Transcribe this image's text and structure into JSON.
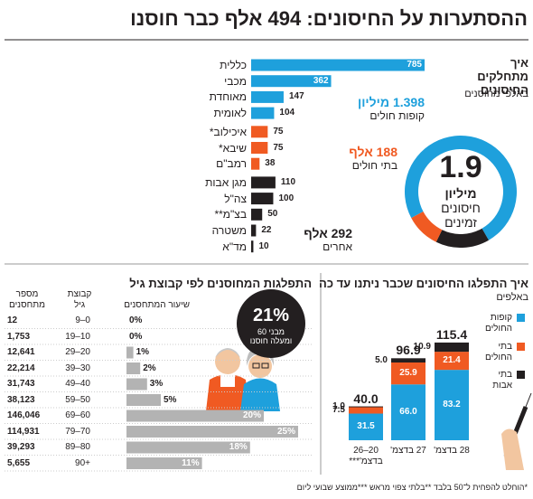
{
  "title": "ההסתערות על החיסונים: 494 אלף כבר חוסנו",
  "footnote": "*הוחלט להפחית ל־50 בלבד **בלתי צפוי מראש ***ממוצע שבועי ליום",
  "chart_data": [
    {
      "type": "hbar",
      "title": "איך מתחלקים החיסונים",
      "subtitle": "באלפי מחוסנים",
      "categories": [
        "כללית",
        "מכבי",
        "מאוחדת",
        "לאומית",
        "איכילוב*",
        "שיבא*",
        "רמב\"ם",
        "מגן אבות",
        "צה\"ל",
        "בצ\"מ**",
        "משטרה",
        "מד\"א"
      ],
      "values": [
        785,
        362,
        147,
        104,
        75,
        75,
        38,
        110,
        100,
        50,
        22,
        10
      ],
      "colors": [
        "#1ea0dc",
        "#1ea0dc",
        "#1ea0dc",
        "#1ea0dc",
        "#f05a22",
        "#f05a22",
        "#f05a22",
        "#231f20",
        "#231f20",
        "#231f20",
        "#231f20",
        "#231f20"
      ]
    },
    {
      "type": "donut",
      "categories": [
        "קופות חולים",
        "בתי חולים",
        "אחרים"
      ],
      "values": [
        1398,
        188,
        292
      ],
      "value_labels": [
        "1.398 מיליון",
        "188 אלף",
        "292 אלף"
      ],
      "colors": [
        "#1ea0dc",
        "#f05a22",
        "#231f20"
      ],
      "total": 1.9,
      "total_unit": "מיליון",
      "center_label": "חיסונים זמינים"
    },
    {
      "type": "stacked_bar",
      "title": "איך התפלגו החיסונים שכבר ניתנו עד כה",
      "subtitle": "באלפים",
      "categories": [
        "20–26 בדצמ'***",
        "27 בדצמ'",
        "28 בדצמ'"
      ],
      "series": [
        {
          "name": "קופות החולים",
          "color": "#1ea0dc",
          "values": [
            31.5,
            66,
            83.2
          ],
          "value_labels": [
            "31.5",
            "66.0",
            "83.2"
          ]
        },
        {
          "name": "בתי החולים",
          "color": "#f05a22",
          "values": [
            7.5,
            25.9,
            21.4
          ]
        },
        {
          "name": "בתי אבות",
          "color": "#231f20",
          "values": [
            1,
            5,
            10.9
          ],
          "value_labels": [
            "1.0",
            "5.0",
            "10.9"
          ]
        }
      ],
      "totals": [
        40,
        96.9,
        115.4
      ],
      "total_labels": [
        "40.0",
        "96.9",
        "115.4"
      ]
    },
    {
      "type": "age_bar",
      "title": "התפלגות המחוסנים לפי קבוצת גיל",
      "column_headers": [
        "מספר מתחסנים",
        "קבוצת גיל",
        "שיעור המתחסנים"
      ],
      "categories": [
        "9–0",
        "19–10",
        "29–20",
        "39–30",
        "49–40",
        "59–50",
        "69–60",
        "79–70",
        "89–80",
        "90+"
      ],
      "counts": [
        "12",
        "1,753",
        "12,641",
        "22,214",
        "31,743",
        "38,123",
        "146,046",
        "114,931",
        "39,293",
        "5,655"
      ],
      "values": [
        0,
        0,
        1,
        2,
        3,
        5,
        20,
        25,
        18,
        11
      ],
      "value_labels": [
        "0%",
        "0%",
        "1%",
        "2%",
        "3%",
        "5%",
        "20%",
        "25%",
        "18%",
        "11%"
      ],
      "color": "#b3b3b3",
      "headline": "21%",
      "headline_text": "מבני 60 ומעלה חוסנו"
    }
  ]
}
